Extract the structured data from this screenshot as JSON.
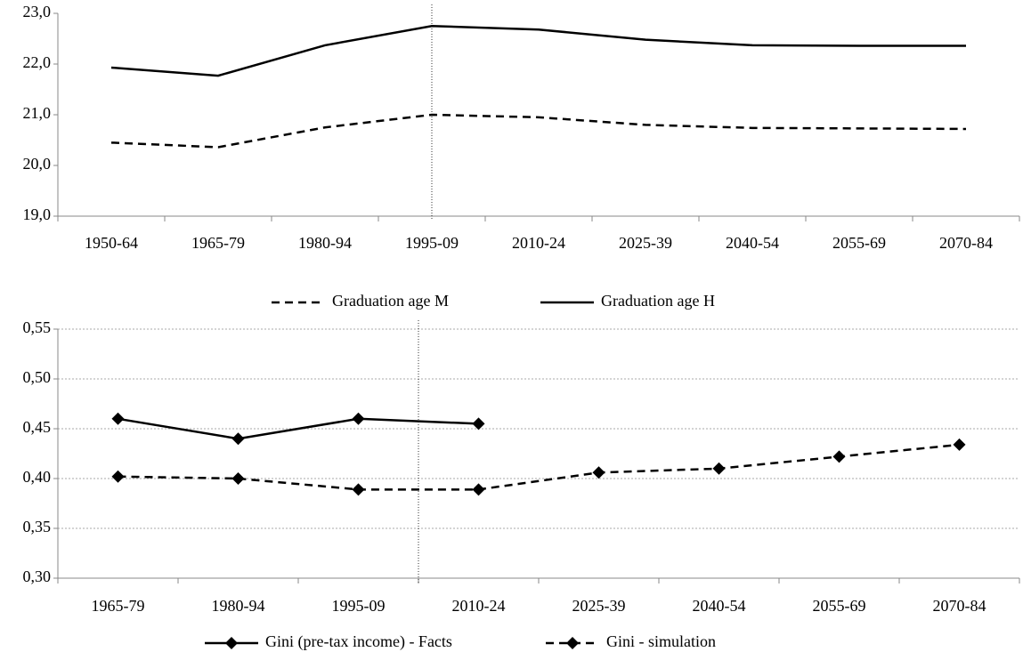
{
  "chart_data": [
    {
      "type": "line",
      "categories": [
        "1950-64",
        "1965-79",
        "1980-94",
        "1995-09",
        "2010-24",
        "2025-39",
        "2040-54",
        "2055-69",
        "2070-84"
      ],
      "series": [
        {
          "name": "Graduation age M",
          "color": "#000000",
          "line_style": "dashed",
          "marker": "none",
          "values": [
            20.45,
            20.36,
            20.75,
            21.0,
            20.95,
            20.8,
            20.74,
            20.73,
            20.72
          ]
        },
        {
          "name": "Graduation age H",
          "color": "#000000",
          "line_style": "solid",
          "marker": "none",
          "values": [
            21.93,
            21.77,
            22.37,
            22.75,
            22.68,
            22.48,
            22.37,
            22.36,
            22.36
          ]
        }
      ],
      "ylim": [
        19,
        23
      ],
      "yticks": [
        {
          "value": 19,
          "label": "19,0"
        },
        {
          "value": 20,
          "label": "20,0"
        },
        {
          "value": 21,
          "label": "21,0"
        },
        {
          "value": 22,
          "label": "22,0"
        },
        {
          "value": 23,
          "label": "23,0"
        }
      ],
      "grid": false
    },
    {
      "type": "line",
      "categories": [
        "1965-79",
        "1980-94",
        "1995-09",
        "2010-24",
        "2025-39",
        "2040-54",
        "2055-69",
        "2070-84"
      ],
      "series": [
        {
          "name": "Gini (pre-tax income) - Facts",
          "color": "#000000",
          "line_style": "solid",
          "marker": "diamond",
          "values": [
            0.46,
            0.44,
            0.46,
            0.455,
            null,
            null,
            null,
            null
          ]
        },
        {
          "name": "Gini - simulation",
          "color": "#000000",
          "line_style": "dashed",
          "marker": "diamond",
          "values": [
            0.402,
            0.4,
            0.389,
            0.389,
            0.406,
            0.41,
            0.422,
            0.434
          ]
        }
      ],
      "ylim": [
        0.3,
        0.55
      ],
      "yticks": [
        {
          "value": 0.3,
          "label": "0,30"
        },
        {
          "value": 0.35,
          "label": "0,35"
        },
        {
          "value": 0.4,
          "label": "0,40"
        },
        {
          "value": 0.45,
          "label": "0,45"
        },
        {
          "value": 0.5,
          "label": "0,50"
        },
        {
          "value": 0.55,
          "label": "0,55"
        }
      ],
      "grid": true
    }
  ]
}
